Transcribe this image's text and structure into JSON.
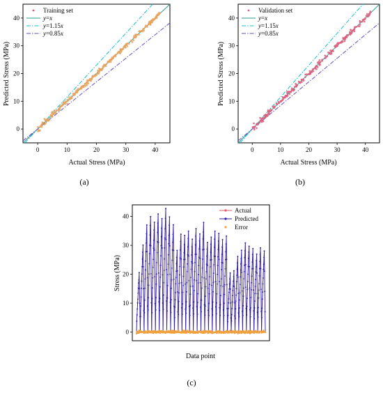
{
  "figure": {
    "panels": [
      {
        "caption": "(a)"
      },
      {
        "caption": "(b)"
      },
      {
        "caption": "(c)"
      }
    ]
  },
  "chart_data": [
    {
      "type": "scatter",
      "xlabel": "Actual Stress (MPa)",
      "ylabel": "Predicted Stress (MPa)",
      "xlim": [
        -5,
        45
      ],
      "ylim": [
        -5,
        45
      ],
      "xticks": [
        0,
        10,
        20,
        30,
        40
      ],
      "yticks": [
        0,
        10,
        20,
        30,
        40
      ],
      "legend_position": "top-left",
      "points": {
        "name": "Training set",
        "color": "#e8a35e",
        "x_range": [
          0,
          42
        ],
        "spread": 0.6,
        "count": 260
      },
      "reference_lines": [
        {
          "name": "y=x",
          "slope": 1.0,
          "color": "#2a9d8f",
          "dash": "solid"
        },
        {
          "name": "y=1.15x",
          "slope": 1.15,
          "color": "#17becf",
          "dash": "dashdot"
        },
        {
          "name": "y=0.85x",
          "slope": 0.85,
          "color": "#6a4cc4",
          "dash": "dashdot"
        }
      ],
      "legend": [
        {
          "label": "Training set",
          "symbol": "dot",
          "color": "#e05a6b"
        },
        {
          "label": "y=x",
          "symbol": "solid",
          "color": "#2a9d8f"
        },
        {
          "label": "y=1.15x",
          "symbol": "dashdot",
          "color": "#17becf"
        },
        {
          "label": "y=0.85x",
          "symbol": "dashdot",
          "color": "#6a4cc4"
        }
      ]
    },
    {
      "type": "scatter",
      "xlabel": "Actual Stress (MPa)",
      "ylabel": "Predicted Stress (MPa)",
      "xlim": [
        -5,
        45
      ],
      "ylim": [
        -5,
        45
      ],
      "xticks": [
        0,
        10,
        20,
        30,
        40
      ],
      "yticks": [
        0,
        10,
        20,
        30,
        40
      ],
      "legend_position": "top-left",
      "points": {
        "name": "Validation set",
        "color": "#d9607e",
        "x_range": [
          0,
          42
        ],
        "spread": 0.7,
        "count": 220
      },
      "reference_lines": [
        {
          "name": "y=x",
          "slope": 1.0,
          "color": "#2a9d8f",
          "dash": "solid"
        },
        {
          "name": "y=1.15x",
          "slope": 1.15,
          "color": "#17becf",
          "dash": "dashdot"
        },
        {
          "name": "y=0.85x",
          "slope": 0.85,
          "color": "#6a4cc4",
          "dash": "dashdot"
        }
      ],
      "legend": [
        {
          "label": "Validation set",
          "symbol": "dot",
          "color": "#e05a9b"
        },
        {
          "label": "y=x",
          "symbol": "solid",
          "color": "#2a9d8f"
        },
        {
          "label": "y=1.15x",
          "symbol": "dashdot",
          "color": "#17becf"
        },
        {
          "label": "y=0.85x",
          "symbol": "dashdot",
          "color": "#6a4cc4"
        }
      ]
    },
    {
      "type": "line",
      "xlabel": "Data point",
      "ylabel": "Stress (MPa)",
      "ylim": [
        -3,
        44
      ],
      "yticks": [
        0,
        10,
        20,
        30,
        40
      ],
      "legend_position": "top-right",
      "cycle_peaks": [
        20,
        30,
        37,
        40,
        38,
        41,
        39,
        43,
        40,
        37,
        28,
        34,
        33,
        35,
        32,
        36,
        34,
        38,
        31,
        33,
        35,
        34,
        32,
        33,
        20,
        21,
        26,
        28,
        31,
        30,
        29,
        27,
        29,
        28
      ],
      "series": [
        {
          "name": "Actual",
          "color": "#e05a6b",
          "marker": "dot"
        },
        {
          "name": "Predicted",
          "color": "#2b1fa8",
          "marker": "dot"
        },
        {
          "name": "Error",
          "color": "#f2a03c",
          "marker": "dot"
        }
      ]
    }
  ]
}
